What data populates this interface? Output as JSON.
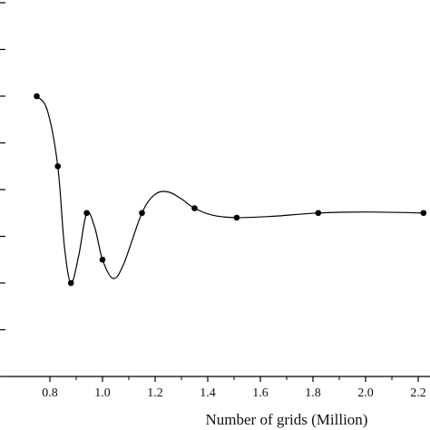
{
  "chart_data": {
    "type": "line",
    "xlabel": "Number of grids (Million)",
    "ylabel": "",
    "title": "",
    "x_ticks": [
      "0.8",
      "1.0",
      "1.2",
      "1.4",
      "1.6",
      "1.8",
      "2.0",
      "2.2"
    ],
    "x_tick_values": [
      0.8,
      1.0,
      1.2,
      1.4,
      1.6,
      1.8,
      2.0,
      2.2
    ],
    "xlim": [
      0.6,
      2.24
    ],
    "ylim": [
      0,
      8
    ],
    "y_tick_values": [
      0,
      1,
      2,
      3,
      4,
      5,
      6,
      7,
      8
    ],
    "grid": false,
    "series": [
      {
        "points": [
          {
            "x": 0.75,
            "y": 6.0
          },
          {
            "x": 0.83,
            "y": 4.5
          },
          {
            "x": 0.88,
            "y": 2.0
          },
          {
            "x": 0.94,
            "y": 3.5
          },
          {
            "x": 1.0,
            "y": 2.5
          },
          {
            "x": 1.15,
            "y": 3.5
          },
          {
            "x": 1.35,
            "y": 3.6
          },
          {
            "x": 1.51,
            "y": 3.4
          },
          {
            "x": 1.82,
            "y": 3.5
          },
          {
            "x": 2.22,
            "y": 3.5
          }
        ]
      }
    ],
    "curve_samples": [
      {
        "x": 0.75,
        "y": 6.0
      },
      {
        "x": 0.79,
        "y": 5.7
      },
      {
        "x": 0.83,
        "y": 4.5
      },
      {
        "x": 0.855,
        "y": 2.8
      },
      {
        "x": 0.88,
        "y": 2.0
      },
      {
        "x": 0.91,
        "y": 2.6
      },
      {
        "x": 0.94,
        "y": 3.5
      },
      {
        "x": 0.97,
        "y": 3.2
      },
      {
        "x": 1.0,
        "y": 2.5
      },
      {
        "x": 1.04,
        "y": 2.1
      },
      {
        "x": 1.08,
        "y": 2.4
      },
      {
        "x": 1.15,
        "y": 3.5
      },
      {
        "x": 1.2,
        "y": 3.9
      },
      {
        "x": 1.25,
        "y": 3.95
      },
      {
        "x": 1.3,
        "y": 3.8
      },
      {
        "x": 1.35,
        "y": 3.6
      },
      {
        "x": 1.42,
        "y": 3.45
      },
      {
        "x": 1.51,
        "y": 3.4
      },
      {
        "x": 1.65,
        "y": 3.43
      },
      {
        "x": 1.82,
        "y": 3.5
      },
      {
        "x": 2.0,
        "y": 3.52
      },
      {
        "x": 2.22,
        "y": 3.5
      }
    ]
  }
}
